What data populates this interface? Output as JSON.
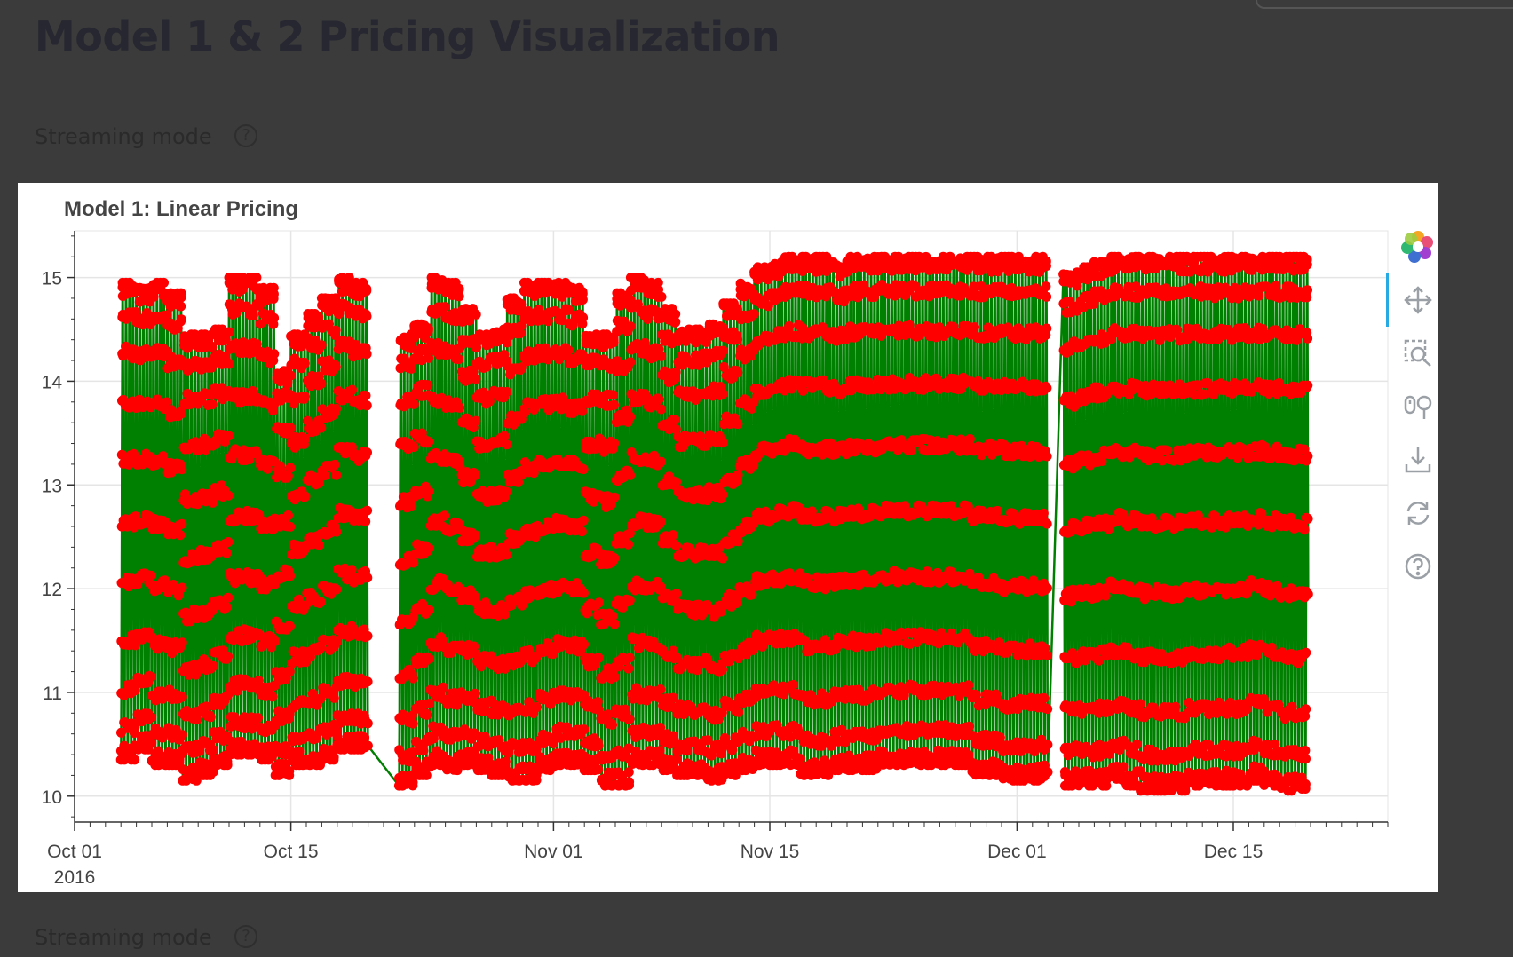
{
  "page": {
    "title": "Model 1 & 2 Pricing Visualization",
    "toggle_label_1": "Streaming mode",
    "toggle_label_2": "Streaming mode",
    "help_glyph": "?"
  },
  "toolbar": {
    "logo_icon": "bokeh-logo-icon",
    "tools": [
      "pan-icon",
      "box-zoom-icon",
      "wheel-zoom-icon",
      "save-icon",
      "reset-icon",
      "help-icon"
    ],
    "active_tool": "pan-icon"
  },
  "colors": {
    "line": "#008000",
    "marker": "#ff0000",
    "background": "#3b3b3b"
  },
  "chart_data": {
    "type": "line",
    "title": "Model 1: Linear Pricing",
    "xlabel": "",
    "ylabel": "",
    "x_axis_type": "datetime",
    "xlim": [
      "2016-10-01",
      "2016-12-25"
    ],
    "ylim": [
      9.75,
      15.45
    ],
    "x_ticks": [
      {
        "date": "2016-10-01",
        "label": "Oct 01",
        "sublabel": "2016"
      },
      {
        "date": "2016-10-15",
        "label": "Oct 15",
        "sublabel": ""
      },
      {
        "date": "2016-11-01",
        "label": "Nov 01",
        "sublabel": ""
      },
      {
        "date": "2016-11-15",
        "label": "Nov 15",
        "sublabel": ""
      },
      {
        "date": "2016-12-01",
        "label": "Dec 01",
        "sublabel": ""
      },
      {
        "date": "2016-12-15",
        "label": "Dec 15",
        "sublabel": ""
      }
    ],
    "y_ticks": [
      10,
      11,
      12,
      13,
      14,
      15
    ],
    "grid": true,
    "series": [
      {
        "line_color": "#008000",
        "marker_color": "#ff0000",
        "data_start": "2016-10-04",
        "data_end": "2016-12-19",
        "gaps": [
          [
            "2016-10-19",
            "2016-10-22"
          ],
          [
            "2016-12-02",
            "2016-12-04"
          ]
        ],
        "cycles_per_day": 4.5,
        "points_per_cycle": 24,
        "daily_peaks": [
          [
            "2016-10-04",
            14.95
          ],
          [
            "2016-10-05",
            14.9
          ],
          [
            "2016-10-06",
            14.95
          ],
          [
            "2016-10-07",
            14.85
          ],
          [
            "2016-10-08",
            14.45
          ],
          [
            "2016-10-09",
            14.45
          ],
          [
            "2016-10-10",
            14.5
          ],
          [
            "2016-10-11",
            15.0
          ],
          [
            "2016-10-12",
            15.0
          ],
          [
            "2016-10-13",
            14.9
          ],
          [
            "2016-10-14",
            14.1
          ],
          [
            "2016-10-15",
            14.45
          ],
          [
            "2016-10-16",
            14.65
          ],
          [
            "2016-10-17",
            14.8
          ],
          [
            "2016-10-18",
            15.0
          ],
          [
            "2016-10-19",
            14.95
          ],
          [
            "2016-10-22",
            14.45
          ],
          [
            "2016-10-23",
            14.55
          ],
          [
            "2016-10-24",
            15.0
          ],
          [
            "2016-10-25",
            14.95
          ],
          [
            "2016-10-26",
            14.7
          ],
          [
            "2016-10-27",
            14.45
          ],
          [
            "2016-10-28",
            14.5
          ],
          [
            "2016-10-29",
            14.8
          ],
          [
            "2016-10-30",
            14.95
          ],
          [
            "2016-10-31",
            14.95
          ],
          [
            "2016-11-01",
            14.95
          ],
          [
            "2016-11-02",
            14.9
          ],
          [
            "2016-11-03",
            14.45
          ],
          [
            "2016-11-04",
            14.45
          ],
          [
            "2016-11-05",
            14.85
          ],
          [
            "2016-11-06",
            15.0
          ],
          [
            "2016-11-07",
            14.95
          ],
          [
            "2016-11-08",
            14.7
          ],
          [
            "2016-11-09",
            14.5
          ],
          [
            "2016-11-10",
            14.5
          ],
          [
            "2016-11-11",
            14.55
          ],
          [
            "2016-11-12",
            14.75
          ],
          [
            "2016-11-13",
            14.95
          ],
          [
            "2016-11-14",
            15.1
          ],
          [
            "2016-11-15",
            15.15
          ],
          [
            "2016-11-16",
            15.2
          ],
          [
            "2016-11-17",
            15.2
          ],
          [
            "2016-11-18",
            15.2
          ],
          [
            "2016-11-19",
            15.15
          ],
          [
            "2016-11-20",
            15.2
          ],
          [
            "2016-11-21",
            15.2
          ],
          [
            "2016-11-22",
            15.2
          ],
          [
            "2016-11-23",
            15.2
          ],
          [
            "2016-11-24",
            15.2
          ],
          [
            "2016-11-25",
            15.2
          ],
          [
            "2016-11-26",
            15.2
          ],
          [
            "2016-11-27",
            15.2
          ],
          [
            "2016-11-28",
            15.2
          ],
          [
            "2016-11-29",
            15.2
          ],
          [
            "2016-11-30",
            15.2
          ],
          [
            "2016-12-01",
            15.2
          ],
          [
            "2016-12-02",
            15.2
          ],
          [
            "2016-12-04",
            15.05
          ],
          [
            "2016-12-05",
            15.1
          ],
          [
            "2016-12-06",
            15.15
          ],
          [
            "2016-12-07",
            15.2
          ],
          [
            "2016-12-08",
            15.2
          ],
          [
            "2016-12-09",
            15.2
          ],
          [
            "2016-12-10",
            15.2
          ],
          [
            "2016-12-11",
            15.2
          ],
          [
            "2016-12-12",
            15.2
          ],
          [
            "2016-12-13",
            15.2
          ],
          [
            "2016-12-14",
            15.2
          ],
          [
            "2016-12-15",
            15.2
          ],
          [
            "2016-12-16",
            15.2
          ],
          [
            "2016-12-17",
            15.2
          ],
          [
            "2016-12-18",
            15.2
          ],
          [
            "2016-12-19",
            15.2
          ]
        ],
        "daily_troughs": [
          [
            "2016-10-04",
            10.35
          ],
          [
            "2016-10-05",
            10.45
          ],
          [
            "2016-10-06",
            10.3
          ],
          [
            "2016-10-07",
            10.3
          ],
          [
            "2016-10-08",
            10.15
          ],
          [
            "2016-10-09",
            10.2
          ],
          [
            "2016-10-10",
            10.3
          ],
          [
            "2016-10-11",
            10.4
          ],
          [
            "2016-10-12",
            10.4
          ],
          [
            "2016-10-13",
            10.35
          ],
          [
            "2016-10-14",
            10.2
          ],
          [
            "2016-10-15",
            10.3
          ],
          [
            "2016-10-16",
            10.3
          ],
          [
            "2016-10-17",
            10.35
          ],
          [
            "2016-10-18",
            10.45
          ],
          [
            "2016-10-19",
            10.45
          ],
          [
            "2016-10-22",
            10.1
          ],
          [
            "2016-10-23",
            10.2
          ],
          [
            "2016-10-24",
            10.3
          ],
          [
            "2016-10-25",
            10.25
          ],
          [
            "2016-10-26",
            10.3
          ],
          [
            "2016-10-27",
            10.25
          ],
          [
            "2016-10-28",
            10.2
          ],
          [
            "2016-10-29",
            10.15
          ],
          [
            "2016-10-30",
            10.15
          ],
          [
            "2016-10-31",
            10.25
          ],
          [
            "2016-11-01",
            10.3
          ],
          [
            "2016-11-02",
            10.3
          ],
          [
            "2016-11-03",
            10.25
          ],
          [
            "2016-11-04",
            10.1
          ],
          [
            "2016-11-05",
            10.1
          ],
          [
            "2016-11-06",
            10.3
          ],
          [
            "2016-11-07",
            10.3
          ],
          [
            "2016-11-08",
            10.25
          ],
          [
            "2016-11-09",
            10.2
          ],
          [
            "2016-11-10",
            10.2
          ],
          [
            "2016-11-11",
            10.15
          ],
          [
            "2016-11-12",
            10.2
          ],
          [
            "2016-11-13",
            10.25
          ],
          [
            "2016-11-14",
            10.3
          ],
          [
            "2016-11-15",
            10.3
          ],
          [
            "2016-11-16",
            10.3
          ],
          [
            "2016-11-17",
            10.2
          ],
          [
            "2016-11-18",
            10.2
          ],
          [
            "2016-11-19",
            10.25
          ],
          [
            "2016-11-20",
            10.25
          ],
          [
            "2016-11-21",
            10.25
          ],
          [
            "2016-11-22",
            10.3
          ],
          [
            "2016-11-23",
            10.3
          ],
          [
            "2016-11-24",
            10.3
          ],
          [
            "2016-11-25",
            10.3
          ],
          [
            "2016-11-26",
            10.3
          ],
          [
            "2016-11-27",
            10.3
          ],
          [
            "2016-11-28",
            10.2
          ],
          [
            "2016-11-29",
            10.2
          ],
          [
            "2016-11-30",
            10.15
          ],
          [
            "2016-12-01",
            10.15
          ],
          [
            "2016-12-02",
            10.15
          ],
          [
            "2016-12-04",
            10.1
          ],
          [
            "2016-12-05",
            10.1
          ],
          [
            "2016-12-06",
            10.1
          ],
          [
            "2016-12-07",
            10.15
          ],
          [
            "2016-12-08",
            10.1
          ],
          [
            "2016-12-09",
            10.05
          ],
          [
            "2016-12-10",
            10.05
          ],
          [
            "2016-12-11",
            10.05
          ],
          [
            "2016-12-12",
            10.1
          ],
          [
            "2016-12-13",
            10.1
          ],
          [
            "2016-12-14",
            10.1
          ],
          [
            "2016-12-15",
            10.1
          ],
          [
            "2016-12-16",
            10.15
          ],
          [
            "2016-12-17",
            10.1
          ],
          [
            "2016-12-18",
            10.05
          ],
          [
            "2016-12-19",
            10.05
          ]
        ]
      }
    ]
  }
}
